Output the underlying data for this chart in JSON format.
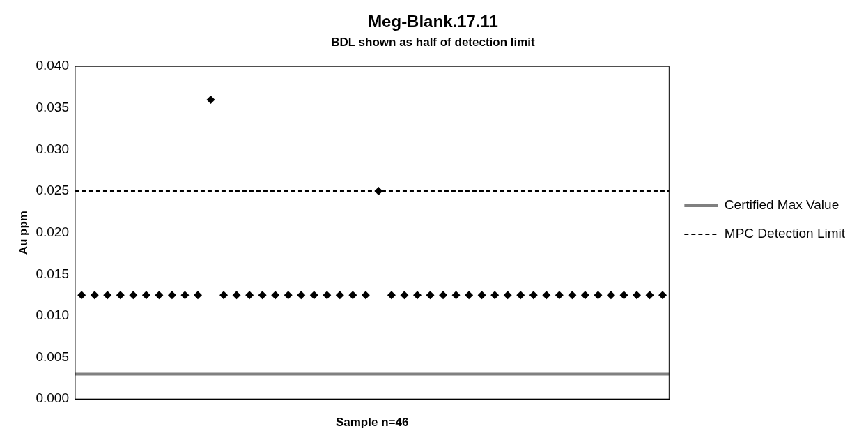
{
  "chart_data": {
    "type": "scatter",
    "title": "Meg-Blank.17.11",
    "subtitle": "BDL shown as half of detection limit",
    "xlabel": "Sample n=46",
    "ylabel": "Au ppm",
    "categories": [
      null,
      null,
      null,
      null,
      null,
      null,
      null,
      null,
      null,
      null,
      null,
      null,
      null,
      null,
      null,
      null,
      null,
      null,
      null,
      null,
      null,
      null,
      null,
      null,
      null,
      null,
      null,
      null,
      null,
      null,
      null,
      null,
      null,
      null,
      null,
      null,
      null,
      null,
      null,
      null,
      null,
      null,
      null,
      null,
      null,
      null
    ],
    "series": [
      {
        "color": "#000000",
        "values": [
          0.0125,
          0.0125,
          0.0125,
          0.0125,
          0.0125,
          0.0125,
          0.0125,
          0.0125,
          0.0125,
          0.0125,
          0.036,
          0.0125,
          0.0125,
          0.0125,
          0.0125,
          0.0125,
          0.0125,
          0.0125,
          0.0125,
          0.0125,
          0.0125,
          0.0125,
          0.0125,
          0.025,
          0.0125,
          0.0125,
          0.0125,
          0.0125,
          0.0125,
          0.0125,
          0.0125,
          0.0125,
          0.0125,
          0.0125,
          0.0125,
          0.0125,
          0.0125,
          0.0125,
          0.0125,
          0.0125,
          0.0125,
          0.0125,
          0.0125,
          0.0125,
          0.0125,
          0.0125
        ]
      }
    ],
    "marker": "diamond",
    "ylim": [
      0,
      0.04
    ],
    "yticks": [
      {
        "value": 0,
        "label": "0.000"
      },
      {
        "value": 0.005,
        "label": "0.005"
      },
      {
        "value": 0.01,
        "label": "0.010"
      },
      {
        "value": 0.015,
        "label": "0.015"
      },
      {
        "value": 0.02,
        "label": "0.020"
      },
      {
        "value": 0.025,
        "label": "0.025"
      },
      {
        "value": 0.03,
        "label": "0.030"
      },
      {
        "value": 0.035,
        "label": "0.035"
      },
      {
        "value": 0.04,
        "label": "0.040"
      }
    ],
    "ref_lines": [
      {
        "axis": "y",
        "value": 0.003,
        "label": "Certified Max Value",
        "color": "#808080",
        "line_style": "solid"
      },
      {
        "axis": "y",
        "value": 0.025,
        "label": "MPC Detection Limit",
        "color": "#000000",
        "line_style": "dashed"
      }
    ],
    "grid": false,
    "legend": "right"
  }
}
